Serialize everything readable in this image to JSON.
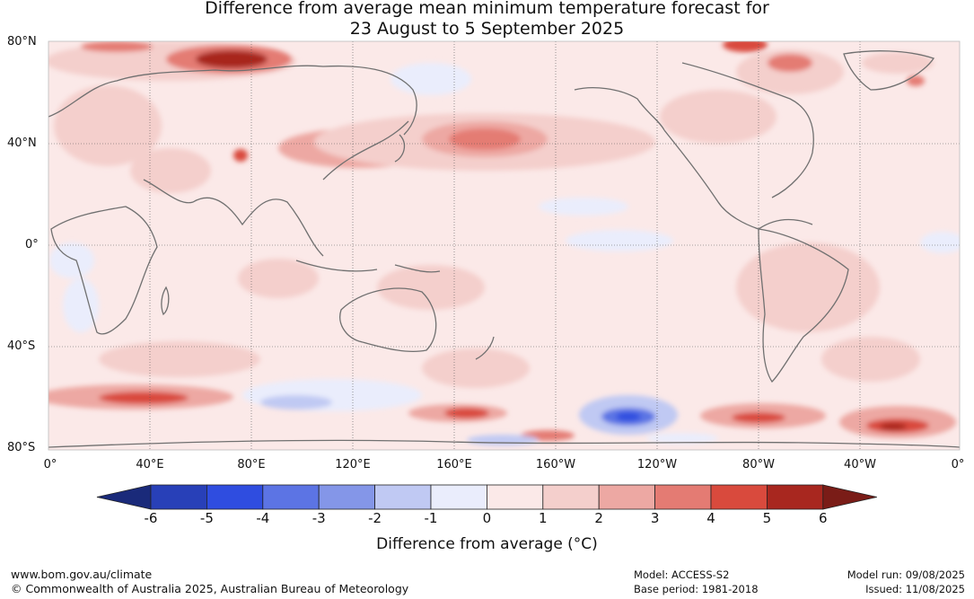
{
  "title": {
    "line1": "Difference from average mean minimum temperature forecast for",
    "line2": "23 August to 5 September 2025"
  },
  "map": {
    "lat_labels": [
      "80°N",
      "40°N",
      "0°",
      "40°S",
      "80°S"
    ],
    "lon_labels": [
      "0°",
      "40°E",
      "80°E",
      "120°E",
      "160°E",
      "160°W",
      "120°W",
      "80°W",
      "40°W",
      "0°"
    ],
    "background_anomaly_color": "#fbe9e8",
    "anomalies": [
      {
        "region": "Svalbard-Barents",
        "value": 5,
        "color": "#c0392b"
      },
      {
        "region": "Central Asia",
        "value": 4,
        "color": "#e47b73"
      },
      {
        "region": "North Pacific",
        "value": 3,
        "color": "#eda8a3"
      },
      {
        "region": "Southern Ocean Indian sector",
        "value": 4,
        "color": "#e07a72"
      },
      {
        "region": "South Pacific",
        "value": -4,
        "color": "#4f6ee0"
      },
      {
        "region": "South Atlantic",
        "value": 5,
        "color": "#c0392b"
      }
    ]
  },
  "colorbar": {
    "ticks": [
      "-6",
      "-5",
      "-4",
      "-3",
      "-2",
      "-1",
      "0",
      "1",
      "2",
      "3",
      "4",
      "5",
      "6"
    ],
    "colors": [
      "#1a2a7a",
      "#2840b8",
      "#2f4de0",
      "#5c74e4",
      "#8496e8",
      "#c0c9f3",
      "#eaedfc",
      "#fbe9e8",
      "#f4cfcc",
      "#eda8a3",
      "#e47b73",
      "#d94a3d",
      "#a8271f",
      "#7a1c17"
    ],
    "title": "Difference from average (°C)"
  },
  "footer": {
    "website": "www.bom.gov.au/climate",
    "copyright": "© Commonwealth of Australia 2025, Australian Bureau of Meteorology",
    "model": "Model: ACCESS-S2",
    "base_period": "Base period: 1981-2018",
    "model_run": "Model run: 09/08/2025",
    "issued": "Issued: 11/08/2025"
  }
}
